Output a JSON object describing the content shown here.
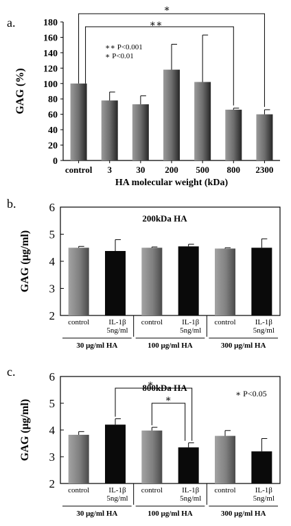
{
  "chart_data": [
    {
      "panel": "a.",
      "type": "bar",
      "title": "",
      "xlabel": "HA molecular weight (kDa)",
      "ylabel": "GAG (%)",
      "ylim": [
        0,
        180
      ],
      "yticks": [
        "0",
        "20",
        "40",
        "60",
        "80",
        "100",
        "120",
        "140",
        "160",
        "180"
      ],
      "categories": [
        "control",
        "3",
        "30",
        "200",
        "500",
        "800",
        "2300"
      ],
      "series": [
        {
          "values": [
            100,
            78,
            73,
            118,
            102,
            66,
            60
          ],
          "errors": [
            0,
            11,
            11,
            33,
            61,
            2,
            6
          ]
        }
      ],
      "legend_lines": [
        "∗∗ P<0.001",
        "∗ P<0.01"
      ],
      "significance": [
        {
          "from": "control",
          "to": "2300",
          "label": "∗"
        },
        {
          "from": "control",
          "to": "800",
          "label": "∗∗"
        }
      ]
    },
    {
      "panel": "b.",
      "type": "bar",
      "title": "200kDa HA",
      "xlabel": "",
      "ylabel": "GAG (μg/ml)",
      "ylim": [
        2,
        6
      ],
      "yticks": [
        "2",
        "3",
        "4",
        "5",
        "6"
      ],
      "categories": [
        [
          "control"
        ],
        [
          "IL-1β",
          "5ng/ml"
        ],
        [
          "control"
        ],
        [
          "IL-1β",
          "5ng/ml"
        ],
        [
          "control"
        ],
        [
          "IL-1β",
          "5ng/ml"
        ]
      ],
      "groups": [
        "30 μg/ml HA",
        "100 μg/ml HA",
        "300 μg/ml HA"
      ],
      "series": [
        {
          "values": [
            4.5,
            4.38,
            4.5,
            4.55,
            4.47,
            4.5
          ],
          "errors": [
            0.05,
            0.42,
            0.03,
            0.08,
            0.03,
            0.33
          ]
        }
      ]
    },
    {
      "panel": "c.",
      "type": "bar",
      "title": "800kDa HA",
      "xlabel": "",
      "ylabel": "GAG (μg/ml)",
      "ylim": [
        2,
        6
      ],
      "yticks": [
        "2",
        "3",
        "4",
        "5",
        "6"
      ],
      "categories": [
        [
          "control"
        ],
        [
          "IL-1β",
          "5ng/ml"
        ],
        [
          "control"
        ],
        [
          "IL-1β",
          "5ng/ml"
        ],
        [
          "control"
        ],
        [
          "IL-1β",
          "5ng/ml"
        ]
      ],
      "groups": [
        "30 μg/ml HA",
        "100 μg/ml HA",
        "300 μg/ml HA"
      ],
      "series": [
        {
          "values": [
            3.82,
            4.2,
            3.98,
            3.35,
            3.78,
            3.2
          ],
          "errors": [
            0.12,
            0.22,
            0.12,
            0.17,
            0.2,
            0.48
          ]
        }
      ],
      "legend_lines": [
        "∗ P<0.05"
      ],
      "significance": [
        {
          "from": 1,
          "to": 3,
          "label": "∗"
        },
        {
          "from": 2,
          "to": 3,
          "label": "∗"
        }
      ]
    }
  ],
  "colors": {
    "control_bar": "#7f7f7f",
    "treated_bar": "#0a0a0a",
    "axis": "#000000"
  }
}
